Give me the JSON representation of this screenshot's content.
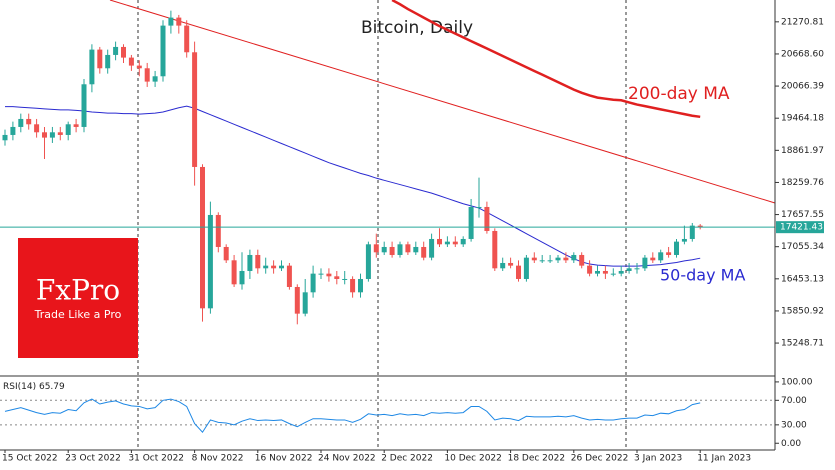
{
  "chart_data": [
    {
      "type": "candlestick",
      "title": "Bitcoin, Daily",
      "categories": [
        "15 Oct 2022",
        null,
        null,
        null,
        null,
        null,
        null,
        null,
        "23 Oct 2022",
        null,
        null,
        null,
        null,
        null,
        null,
        null,
        "31 Oct 2022",
        null,
        null,
        null,
        null,
        null,
        null,
        null,
        "8 Nov 2022",
        null,
        null,
        null,
        null,
        null,
        null,
        null,
        "16 Nov 2022",
        null,
        null,
        null,
        null,
        null,
        null,
        null,
        "24 Nov 2022",
        null,
        null,
        null,
        null,
        null,
        null,
        null,
        "2 Dec 2022",
        null,
        null,
        null,
        null,
        null,
        null,
        null,
        "10 Dec 2022",
        null,
        null,
        null,
        null,
        null,
        null,
        null,
        "18 Dec 2022",
        null,
        null,
        null,
        null,
        null,
        null,
        null,
        "26 Dec 2022",
        null,
        null,
        null,
        null,
        null,
        null,
        null,
        "3 Jan 2023",
        null,
        null,
        null,
        null,
        null,
        null,
        null,
        "11 Jan 2023"
      ],
      "open": [
        19050,
        19150,
        19300,
        19450,
        19350,
        19200,
        19100,
        19200,
        19150,
        19350,
        19300,
        20100,
        20750,
        20400,
        20650,
        20800,
        20600,
        20450,
        20400,
        20150,
        20250,
        21200,
        21350,
        21200,
        20700,
        18550,
        15900,
        17650,
        17050,
        16800,
        16350,
        16600,
        16900,
        16650,
        16700,
        16650,
        16700,
        16300,
        15800,
        16200,
        16550,
        16550,
        16500,
        16450,
        16450,
        16200,
        16450,
        17100,
        16950,
        17050,
        16900,
        17100,
        16950,
        17050,
        16850,
        17200,
        17100,
        17150,
        17100,
        17200,
        17800,
        17800,
        17350,
        16650,
        16750,
        16700,
        16450,
        16850,
        16800,
        16800,
        16800,
        16850,
        16800,
        16900,
        16700,
        16550,
        16600,
        16550,
        16550,
        16600,
        16650,
        16650,
        16850,
        16800,
        16950,
        16900,
        17150,
        17200,
        17450
      ],
      "high": [
        19250,
        19400,
        19550,
        19550,
        19450,
        19300,
        19300,
        19300,
        19400,
        19450,
        20200,
        20850,
        20800,
        20750,
        20900,
        20850,
        20650,
        20550,
        20500,
        20350,
        21300,
        21480,
        21400,
        21300,
        20900,
        18600,
        17900,
        17700,
        17100,
        16900,
        16950,
        17000,
        17000,
        16850,
        16800,
        16800,
        16750,
        16350,
        16450,
        16700,
        16650,
        16650,
        16600,
        16600,
        16500,
        16550,
        17150,
        17300,
        17150,
        17150,
        17150,
        17150,
        17150,
        17150,
        17300,
        17400,
        17250,
        17250,
        17250,
        17950,
        18350,
        17900,
        17400,
        16850,
        16850,
        16800,
        16900,
        16950,
        16900,
        16900,
        16900,
        16950,
        16950,
        16950,
        16800,
        16700,
        16700,
        16650,
        16700,
        16750,
        16750,
        16900,
        16950,
        17000,
        17050,
        17200,
        17450,
        17500,
        17480
      ],
      "low": [
        18950,
        19050,
        19200,
        19250,
        19100,
        18700,
        19000,
        19050,
        19050,
        19200,
        19200,
        19950,
        20300,
        20300,
        20550,
        20500,
        20350,
        20250,
        20050,
        20050,
        20150,
        21050,
        21050,
        20600,
        18200,
        15650,
        15800,
        16950,
        16750,
        16300,
        16250,
        16450,
        16550,
        16550,
        16550,
        16600,
        16250,
        15600,
        15750,
        16100,
        16450,
        16400,
        16350,
        16350,
        16100,
        16100,
        16400,
        16850,
        16900,
        16850,
        16850,
        16900,
        16900,
        16800,
        16800,
        17050,
        17050,
        17050,
        17050,
        17150,
        17600,
        17300,
        16600,
        16600,
        16650,
        16400,
        16400,
        16750,
        16750,
        16750,
        16750,
        16750,
        16750,
        16650,
        16500,
        16500,
        16450,
        16500,
        16500,
        16550,
        16550,
        16600,
        16750,
        16750,
        16850,
        16850,
        17100,
        17150,
        17380
      ],
      "close": [
        19150,
        19300,
        19450,
        19350,
        19200,
        19100,
        19200,
        19150,
        19350,
        19300,
        20100,
        20750,
        20400,
        20650,
        20800,
        20600,
        20450,
        20400,
        20150,
        20250,
        21200,
        21350,
        21200,
        20700,
        18550,
        15900,
        17650,
        17050,
        16800,
        16350,
        16600,
        16900,
        16650,
        16700,
        16650,
        16700,
        16300,
        15800,
        16200,
        16550,
        16550,
        16500,
        16450,
        16450,
        16200,
        16450,
        17100,
        16950,
        17050,
        16900,
        17100,
        16950,
        17050,
        16850,
        17200,
        17100,
        17150,
        17100,
        17200,
        17800,
        17800,
        17350,
        16650,
        16750,
        16700,
        16450,
        16850,
        16800,
        16800,
        16800,
        16850,
        16800,
        16900,
        16700,
        16550,
        16600,
        16550,
        16550,
        16600,
        16650,
        16650,
        16850,
        16800,
        16950,
        16900,
        17150,
        17200,
        17450,
        17421.43
      ],
      "up_color": "#26a69a",
      "down_color": "#ef5350",
      "series": [
        {
          "name": "200-day MA",
          "color": "#e02020",
          "values": [
            null,
            null,
            null,
            null,
            null,
            null,
            null,
            null,
            null,
            null,
            null,
            null,
            null,
            null,
            null,
            null,
            null,
            null,
            null,
            null,
            null,
            null,
            null,
            null,
            null,
            null,
            null,
            null,
            null,
            null,
            null,
            null,
            null,
            null,
            null,
            null,
            null,
            null,
            null,
            null,
            null,
            null,
            null,
            null,
            null,
            null,
            null,
            null,
            null,
            21680,
            21600,
            21510,
            21430,
            21350,
            21270,
            21190,
            21120,
            21050,
            20980,
            20910,
            20840,
            20770,
            20700,
            20630,
            20560,
            20490,
            20420,
            20350,
            20280,
            20210,
            20140,
            20070,
            20000,
            19940,
            19890,
            19850,
            19830,
            19810,
            19800,
            19760,
            19720,
            19690,
            19660,
            19630,
            19600,
            19570,
            19540,
            19510,
            19490
          ]
        },
        {
          "name": "50-day MA",
          "color": "#2a2ad0",
          "values": [
            19680,
            19680,
            19670,
            19660,
            19650,
            19640,
            19630,
            19620,
            19620,
            19610,
            19600,
            19580,
            19570,
            19560,
            19560,
            19550,
            19550,
            19540,
            19550,
            19560,
            19580,
            19620,
            19660,
            19690,
            19650,
            19590,
            19530,
            19470,
            19410,
            19350,
            19290,
            19230,
            19170,
            19110,
            19050,
            18990,
            18930,
            18870,
            18810,
            18750,
            18690,
            18630,
            18580,
            18530,
            18480,
            18430,
            18390,
            18340,
            18300,
            18260,
            18220,
            18180,
            18140,
            18100,
            18060,
            18010,
            17960,
            17910,
            17860,
            17820,
            17780,
            17700,
            17620,
            17540,
            17460,
            17380,
            17300,
            17220,
            17140,
            17060,
            16980,
            16900,
            16830,
            16770,
            16730,
            16710,
            16700,
            16690,
            16690,
            16690,
            16690,
            16700,
            16710,
            16720,
            16740,
            16760,
            16790,
            16810,
            16840
          ]
        }
      ],
      "last_price": 17421.43,
      "last_price_color": "#26a69a",
      "ylim": [
        14650,
        21680
      ],
      "yticks": [
        21270.81,
        {
          "value": 20668.6,
          "label": "20668.60"
        },
        20066.39,
        19464.18,
        18861.97,
        18259.76,
        17657.55,
        17055.34,
        16453.13,
        15850.92,
        15248.71
      ]
    },
    {
      "type": "line",
      "title": "RSI(14)",
      "color": "#1e88e5",
      "values": [
        52,
        55,
        58,
        54,
        50,
        47,
        50,
        49,
        55,
        53,
        66,
        72,
        64,
        67,
        69,
        64,
        61,
        60,
        56,
        58,
        70,
        72,
        68,
        60,
        32,
        18,
        38,
        34,
        33,
        30,
        36,
        40,
        37,
        38,
        37,
        38,
        32,
        27,
        34,
        40,
        40,
        39,
        38,
        38,
        34,
        39,
        48,
        46,
        47,
        45,
        48,
        46,
        47,
        45,
        50,
        49,
        50,
        49,
        50,
        60,
        60,
        52,
        38,
        41,
        40,
        37,
        44,
        43,
        43,
        43,
        44,
        43,
        45,
        41,
        38,
        39,
        38,
        38,
        40,
        41,
        41,
        46,
        45,
        49,
        48,
        53,
        55,
        63,
        65.79
      ],
      "levels": [
        70,
        30
      ],
      "ylim": [
        -11,
        108
      ],
      "yticks": [
        {
          "value": 100,
          "label": "100.00"
        },
        {
          "value": 70,
          "label": "70.00"
        },
        {
          "value": 30,
          "label": "30.00"
        },
        {
          "value": 0,
          "label": "0.00"
        }
      ]
    }
  ],
  "logo": {
    "name": "FxPro",
    "tagline": "Trade Like a Pro"
  }
}
